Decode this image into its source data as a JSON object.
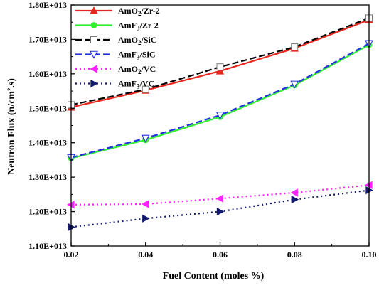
{
  "chart_data": {
    "type": "line",
    "xlabel": "Fuel Content (moles %)",
    "ylabel": "Neutron Flux (n/cm².s)",
    "xlim": [
      0.02,
      0.1
    ],
    "ylim": [
      11000000000000.0,
      18000000000000.0
    ],
    "x": [
      0.02,
      0.04,
      0.06,
      0.08,
      0.1
    ],
    "x_tick_labels": [
      "0.02",
      "0.04",
      "0.06",
      "0.08",
      "0.10"
    ],
    "y_tick_values": [
      11000000000000.0,
      12000000000000.0,
      13000000000000.0,
      14000000000000.0,
      15000000000000.0,
      16000000000000.0,
      17000000000000.0,
      18000000000000.0
    ],
    "y_tick_labels": [
      "1.10E+013",
      "1.20E+013",
      "1.30E+013",
      "1.40E+013",
      "1.50E+013",
      "1.60E+013",
      "1.70E+013",
      "1.80E+013"
    ],
    "grid": false,
    "legend_position": "top-left",
    "series": [
      {
        "name": "AmO2/Zr-2",
        "label_base": "AmO",
        "label_sub": "2",
        "label_rest": "/Zr-2",
        "values": [
          15030000000000.0,
          15520000000000.0,
          16080000000000.0,
          16740000000000.0,
          17570000000000.0
        ],
        "color": "#e8281f",
        "dash": "solid",
        "marker": "triangle-up-filled"
      },
      {
        "name": "AmF3/Zr-2",
        "label_base": "AmF",
        "label_sub": "3",
        "label_rest": "/Zr-2",
        "values": [
          13550000000000.0,
          14080000000000.0,
          14750000000000.0,
          15670000000000.0,
          16840000000000.0
        ],
        "color": "#33ee33",
        "dash": "solid",
        "marker": "circle-filled"
      },
      {
        "name": "AmO2/SiC",
        "label_base": "AmO",
        "label_sub": "2",
        "label_rest": "/SiC",
        "values": [
          15100000000000.0,
          15550000000000.0,
          16200000000000.0,
          16780000000000.0,
          17620000000000.0
        ],
        "color": "#000000",
        "dash": "dashed",
        "marker": "square-open"
      },
      {
        "name": "AmF3/SiC",
        "label_base": "AmF",
        "label_sub": "3",
        "label_rest": "/SiC",
        "values": [
          13570000000000.0,
          14130000000000.0,
          14800000000000.0,
          15700000000000.0,
          16880000000000.0
        ],
        "color": "#2233dd",
        "dash": "dashed",
        "marker": "triangle-down-open"
      },
      {
        "name": "AmO2/VC",
        "label_base": "AmO",
        "label_sub": "2",
        "label_rest": "/VC",
        "values": [
          12200000000000.0,
          12220000000000.0,
          12380000000000.0,
          12550000000000.0,
          12770000000000.0
        ],
        "color": "#ff22ff",
        "dash": "dotted",
        "marker": "triangle-left-filled"
      },
      {
        "name": "AmF3/VC",
        "label_base": "AmF",
        "label_sub": "3",
        "label_rest": "/VC",
        "values": [
          11550000000000.0,
          11800000000000.0,
          12000000000000.0,
          12350000000000.0,
          12620000000000.0
        ],
        "color": "#141a6e",
        "dash": "dotted",
        "marker": "triangle-right-filled"
      }
    ]
  }
}
